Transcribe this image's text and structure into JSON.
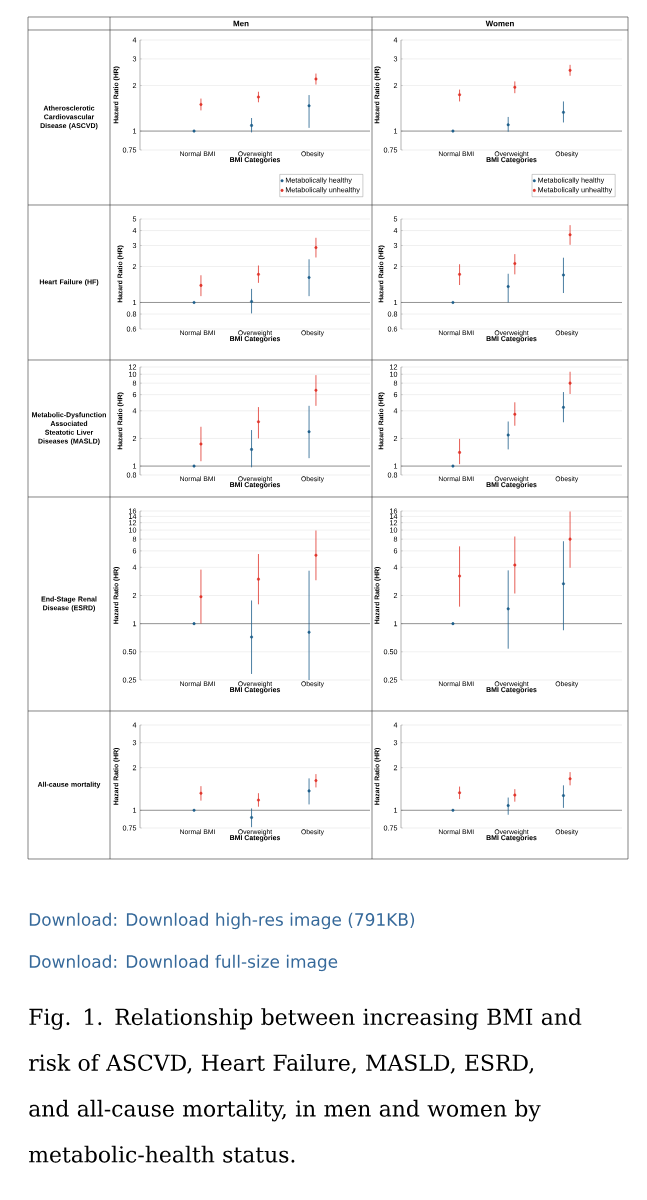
{
  "chart_data": [
    {
      "type": "scatter",
      "title": "Men",
      "annotations": [
        "Atherosclerotic Cardiovascular Disease (ASCVD)"
      ],
      "categories": [
        "Normal BMI",
        "Overweight",
        "Obesity"
      ],
      "xlabel": "BMI Categories",
      "ylabel": "Hazard Ratio (HR)",
      "log": "y",
      "ylim": [
        0.75,
        4
      ],
      "yticks": [
        0.75,
        1,
        2,
        3,
        4
      ],
      "grid": "y",
      "marker": "circle",
      "legend": "bottom right",
      "ref_lines": [
        {
          "axis": "y",
          "value": 1,
          "color": "#555555"
        }
      ],
      "series": [
        {
          "name": "Metabolically healthy",
          "color": "#1f5f8b",
          "values": [
            1,
            1.09,
            1.47
          ],
          "errors": [
            null,
            [
              0.98,
              1.22
            ],
            [
              1.05,
              1.73
            ]
          ]
        },
        {
          "name": "Metabolically unhealthy",
          "color": "#e0352b",
          "values": [
            1.5,
            1.68,
            2.21
          ],
          "errors": [
            [
              1.37,
              1.64
            ],
            [
              1.55,
              1.82
            ],
            [
              2.03,
              2.4
            ]
          ]
        }
      ]
    },
    {
      "type": "scatter",
      "title": "Women",
      "categories": [
        "Normal BMI",
        "Overweight",
        "Obesity"
      ],
      "xlabel": "BMI Categories",
      "ylabel": "Hazard Ratio (HR)",
      "log": "y",
      "ylim": [
        0.75,
        4
      ],
      "yticks": [
        0.75,
        1,
        2,
        3,
        4
      ],
      "grid": "y",
      "marker": "circle",
      "legend": "bottom right",
      "ref_lines": [
        {
          "axis": "y",
          "value": 1,
          "color": "#555555"
        }
      ],
      "series": [
        {
          "name": "Metabolically healthy",
          "color": "#1f5f8b",
          "values": [
            1,
            1.1,
            1.33
          ],
          "errors": [
            null,
            [
              0.99,
              1.24
            ],
            [
              1.14,
              1.57
            ]
          ]
        },
        {
          "name": "Metabolically unhealthy",
          "color": "#e0352b",
          "values": [
            1.74,
            1.95,
            2.52
          ],
          "errors": [
            [
              1.57,
              1.88
            ],
            [
              1.78,
              2.13
            ],
            [
              2.32,
              2.74
            ]
          ]
        }
      ]
    },
    {
      "type": "scatter",
      "annotations": [
        "Heart Failure (HF)"
      ],
      "categories": [
        "Normal BMI",
        "Overweight",
        "Obesity"
      ],
      "xlabel": "BMI Categories",
      "ylabel": "Hazard Ratio (HR)",
      "log": "y",
      "ylim": [
        0.6,
        5
      ],
      "yticks": [
        0.6,
        0.8,
        1,
        2,
        3,
        4,
        5
      ],
      "grid": "y",
      "marker": "circle",
      "ref_lines": [
        {
          "axis": "y",
          "value": 1,
          "color": "#555555"
        }
      ],
      "series": [
        {
          "color": "#1f5f8b",
          "values": [
            1,
            1.02,
            1.62
          ],
          "errors": [
            null,
            [
              0.81,
              1.3
            ],
            [
              1.13,
              2.3
            ]
          ]
        },
        {
          "color": "#e0352b",
          "values": [
            1.39,
            1.72,
            2.88
          ],
          "errors": [
            [
              1.13,
              1.69
            ],
            [
              1.46,
              2.04
            ],
            [
              2.38,
              3.48
            ]
          ]
        }
      ]
    },
    {
      "type": "scatter",
      "categories": [
        "Normal BMI",
        "Overweight",
        "Obesity"
      ],
      "xlabel": "BMI Categories",
      "ylabel": "Hazard Ratio (HR)",
      "log": "y",
      "ylim": [
        0.6,
        5
      ],
      "yticks": [
        0.6,
        0.8,
        1,
        2,
        3,
        4,
        5
      ],
      "grid": "y",
      "marker": "circle",
      "ref_lines": [
        {
          "axis": "y",
          "value": 1,
          "color": "#555555"
        }
      ],
      "series": [
        {
          "color": "#1f5f8b",
          "values": [
            1,
            1.36,
            1.7
          ],
          "errors": [
            null,
            [
              1.0,
              1.74
            ],
            [
              1.2,
              2.37
            ]
          ]
        },
        {
          "color": "#e0352b",
          "values": [
            1.72,
            2.12,
            3.69
          ],
          "errors": [
            [
              1.4,
              2.09
            ],
            [
              1.72,
              2.54
            ],
            [
              3.04,
              4.44
            ]
          ]
        }
      ]
    },
    {
      "type": "scatter",
      "annotations": [
        "Metabolic-Dysfunction Associated Steatotic Liver Diseases (MASLD)"
      ],
      "categories": [
        "Normal BMI",
        "Overweight",
        "Obesity"
      ],
      "xlabel": "BMI Categories",
      "ylabel": "Hazard Ratio (HR)",
      "log": "y",
      "ylim": [
        0.8,
        12
      ],
      "yticks": [
        0.8,
        1,
        2,
        4,
        6,
        8,
        10,
        12
      ],
      "grid": "y",
      "marker": "circle",
      "ref_lines": [
        {
          "axis": "y",
          "value": 1,
          "color": "#555555"
        }
      ],
      "series": [
        {
          "color": "#1f5f8b",
          "values": [
            1,
            1.52,
            2.37
          ],
          "errors": [
            null,
            [
              0.97,
              2.47
            ],
            [
              1.22,
              4.53
            ]
          ]
        },
        {
          "color": "#e0352b",
          "values": [
            1.74,
            3.04,
            6.7
          ],
          "errors": [
            [
              1.13,
              2.68
            ],
            [
              2.0,
              4.39
            ],
            [
              4.53,
              9.78
            ]
          ]
        }
      ]
    },
    {
      "type": "scatter",
      "categories": [
        "Normal BMI",
        "Overweight",
        "Obesity"
      ],
      "xlabel": "BMI Categories",
      "ylabel": "Hazard Ratio (HR)",
      "log": "y",
      "ylim": [
        0.8,
        12
      ],
      "yticks": [
        0.8,
        1,
        2,
        4,
        6,
        8,
        10,
        12
      ],
      "grid": "y",
      "marker": "circle",
      "ref_lines": [
        {
          "axis": "y",
          "value": 1,
          "color": "#555555"
        }
      ],
      "series": [
        {
          "color": "#1f5f8b",
          "values": [
            1,
            2.18,
            4.36
          ],
          "errors": [
            null,
            [
              1.52,
              3.06
            ],
            [
              3.0,
              6.4
            ]
          ]
        },
        {
          "color": "#e0352b",
          "values": [
            1.41,
            3.67,
            8.0
          ],
          "errors": [
            [
              1.05,
              1.98
            ],
            [
              2.75,
              4.95
            ],
            [
              6.1,
              10.65
            ]
          ]
        }
      ]
    },
    {
      "type": "scatter",
      "annotations": [
        "End-Stage Renal Disease (ESRD)"
      ],
      "categories": [
        "Normal BMI",
        "Overweight",
        "Obesity"
      ],
      "xlabel": "BMI Categories",
      "ylabel": "Hazard Ratio (HR)",
      "log": "y",
      "ylim": [
        0.25,
        16
      ],
      "yticks": [
        0.25,
        {
          "value": 0.5,
          "label": "0.50"
        },
        1,
        2,
        4,
        6,
        8,
        10,
        12,
        14,
        16
      ],
      "grid": "y",
      "marker": "circle",
      "ref_lines": [
        {
          "axis": "y",
          "value": 1,
          "color": "#555555"
        }
      ],
      "series": [
        {
          "color": "#1f5f8b",
          "values": [
            1,
            0.72,
            0.81
          ],
          "errors": [
            null,
            [
              0.29,
              1.77
            ],
            [
              0.25,
              3.68
            ]
          ]
        },
        {
          "color": "#e0352b",
          "values": [
            1.94,
            2.99,
            5.39
          ],
          "errors": [
            [
              1.0,
              3.78
            ],
            [
              1.61,
              5.55
            ],
            [
              2.91,
              9.9
            ]
          ]
        }
      ]
    },
    {
      "type": "scatter",
      "categories": [
        "Normal BMI",
        "Overweight",
        "Obesity"
      ],
      "xlabel": "BMI Categories",
      "ylabel": "Hazard Ratio (HR)",
      "log": "y",
      "ylim": [
        0.25,
        16
      ],
      "yticks": [
        0.25,
        {
          "value": 0.5,
          "label": "0.50"
        },
        1,
        2,
        4,
        6,
        8,
        10,
        12,
        14,
        16
      ],
      "grid": "y",
      "marker": "circle",
      "ref_lines": [
        {
          "axis": "y",
          "value": 1,
          "color": "#555555"
        }
      ],
      "series": [
        {
          "color": "#1f5f8b",
          "values": [
            1,
            1.44,
            2.67
          ],
          "errors": [
            null,
            [
              0.54,
              3.71
            ],
            [
              0.85,
              7.6
            ]
          ]
        },
        {
          "color": "#e0352b",
          "values": [
            3.23,
            4.23,
            8.0
          ],
          "errors": [
            [
              1.52,
              6.7
            ],
            [
              2.1,
              8.54
            ],
            [
              3.96,
              15.8
            ]
          ]
        }
      ]
    },
    {
      "type": "scatter",
      "annotations": [
        "All-cause mortality"
      ],
      "categories": [
        "Normal BMI",
        "Overweight",
        "Obesity"
      ],
      "xlabel": "BMI Categories",
      "ylabel": "Hazard Ratio (HR)",
      "log": "y",
      "ylim": [
        0.75,
        4
      ],
      "yticks": [
        0.75,
        1,
        2,
        3,
        4
      ],
      "grid": "y",
      "marker": "circle",
      "ref_lines": [
        {
          "axis": "y",
          "value": 1,
          "color": "#555555"
        }
      ],
      "series": [
        {
          "color": "#1f5f8b",
          "values": [
            1,
            0.89,
            1.37
          ],
          "errors": [
            null,
            [
              0.76,
              1.03
            ],
            [
              1.1,
              1.68
            ]
          ]
        },
        {
          "color": "#e0352b",
          "values": [
            1.32,
            1.18,
            1.62
          ],
          "errors": [
            [
              1.17,
              1.48
            ],
            [
              1.06,
              1.32
            ],
            [
              1.45,
              1.8
            ]
          ]
        }
      ]
    },
    {
      "type": "scatter",
      "annotations": [
        "Download: Download high-res image (791KB)",
        "Download: Download full-size image",
        "Fig. 1. Relationship between increasing BMI and risk of ASCVD, Heart Failure, MASLD, ESRD, and all-cause mortality, in men and women by metabolic-health status."
      ],
      "categories": [
        "Normal BMI",
        "Overweight",
        "Obesity"
      ],
      "xlabel": "BMI Categories",
      "ylabel": "Hazard Ratio (HR)",
      "log": "y",
      "ylim": [
        0.75,
        4
      ],
      "yticks": [
        0.75,
        1,
        2,
        3,
        4
      ],
      "grid": "y",
      "marker": "circle",
      "ref_lines": [
        {
          "axis": "y",
          "value": 1,
          "color": "#555555"
        }
      ],
      "series": [
        {
          "color": "#1f5f8b",
          "values": [
            1,
            1.08,
            1.27
          ],
          "errors": [
            null,
            [
              0.93,
              1.23
            ],
            [
              1.04,
              1.5
            ]
          ]
        },
        {
          "color": "#e0352b",
          "values": [
            1.33,
            1.28,
            1.67
          ],
          "errors": [
            [
              1.2,
              1.47
            ],
            [
              1.15,
              1.41
            ],
            [
              1.5,
              1.86
            ]
          ]
        }
      ]
    }
  ]
}
